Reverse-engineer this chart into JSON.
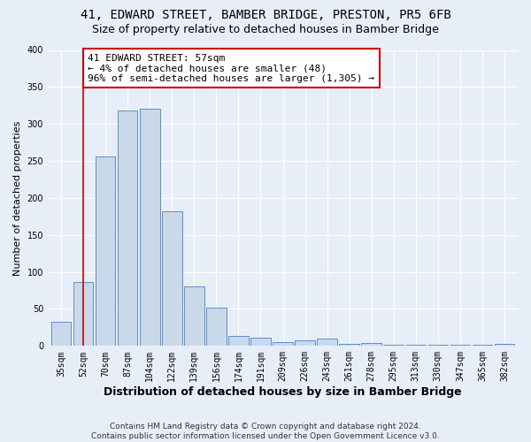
{
  "title": "41, EDWARD STREET, BAMBER BRIDGE, PRESTON, PR5 6FB",
  "subtitle": "Size of property relative to detached houses in Bamber Bridge",
  "xlabel": "Distribution of detached houses by size in Bamber Bridge",
  "ylabel": "Number of detached properties",
  "bar_labels": [
    "35sqm",
    "52sqm",
    "70sqm",
    "87sqm",
    "104sqm",
    "122sqm",
    "139sqm",
    "156sqm",
    "174sqm",
    "191sqm",
    "209sqm",
    "226sqm",
    "243sqm",
    "261sqm",
    "278sqm",
    "295sqm",
    "313sqm",
    "330sqm",
    "347sqm",
    "365sqm",
    "382sqm"
  ],
  "bar_values": [
    33,
    87,
    256,
    318,
    320,
    182,
    80,
    52,
    13,
    11,
    5,
    8,
    10,
    3,
    4,
    2,
    2,
    1,
    1,
    1,
    3
  ],
  "bar_color": "#c9d9ea",
  "bar_edge_color": "#5b8fc9",
  "vline_x": 1,
  "vline_color": "#cc0000",
  "annotation_text": "41 EDWARD STREET: 57sqm\n← 4% of detached houses are smaller (48)\n96% of semi-detached houses are larger (1,305) →",
  "annotation_box_color": "#ffffff",
  "annotation_box_edge": "#cc0000",
  "ylim": [
    0,
    400
  ],
  "yticks": [
    0,
    50,
    100,
    150,
    200,
    250,
    300,
    350,
    400
  ],
  "footer": "Contains HM Land Registry data © Crown copyright and database right 2024.\nContains public sector information licensed under the Open Government Licence v3.0.",
  "bg_color": "#e8eef8",
  "grid_color": "#ffffff",
  "title_fontsize": 10,
  "subtitle_fontsize": 9,
  "ylabel_fontsize": 8,
  "xlabel_fontsize": 9,
  "tick_fontsize": 7,
  "footer_fontsize": 6.5
}
